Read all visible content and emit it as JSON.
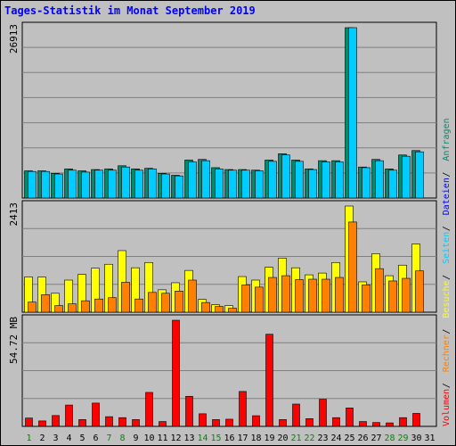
{
  "chart_data": {
    "type": "bar",
    "title": "Tages-Statistik im Monat September 2019",
    "days": [
      1,
      2,
      3,
      4,
      5,
      6,
      7,
      8,
      9,
      10,
      11,
      12,
      13,
      14,
      15,
      16,
      17,
      18,
      19,
      20,
      21,
      22,
      23,
      24,
      25,
      26,
      27,
      28,
      29,
      30,
      31
    ],
    "weekend_days": [
      1,
      7,
      8,
      14,
      15,
      21,
      22,
      28,
      29
    ],
    "panels": [
      {
        "name": "top",
        "scale_label": "26913",
        "ymax": 26913,
        "series": [
          {
            "name": "Anfragen",
            "color": "#008a6e",
            "values": [
              4300,
              4300,
              3900,
              4600,
              4300,
              4500,
              4600,
              5100,
              4600,
              4700,
              3900,
              3600,
              6000,
              6100,
              4800,
              4500,
              4500,
              4400,
              6000,
              7000,
              6000,
              4600,
              5900,
              5900,
              26913,
              4900,
              6100,
              4600,
              6800,
              7500,
              0
            ]
          },
          {
            "name": "Dateien",
            "color": "#00ccff",
            "values": [
              4200,
              4200,
              3800,
              4400,
              4100,
              4400,
              4400,
              4900,
              4400,
              4600,
              3800,
              3500,
              5700,
              5900,
              4600,
              4400,
              4400,
              4300,
              5800,
              6800,
              5800,
              4500,
              5700,
              5700,
              26913,
              4800,
              5900,
              4400,
              6600,
              7300,
              0
            ]
          }
        ]
      },
      {
        "name": "middle",
        "scale_label": "2413",
        "ymax": 2413,
        "series": [
          {
            "name": "Seiten",
            "color": "#ffff00",
            "values": [
              800,
              800,
              430,
              730,
              860,
              1000,
              1090,
              1400,
              1010,
              1130,
              510,
              670,
              950,
              290,
              170,
              150,
              810,
              730,
              1020,
              1230,
              1010,
              850,
              890,
              1130,
              2413,
              690,
              1330,
              830,
              1070,
              1550,
              0
            ]
          },
          {
            "name": "Besuche",
            "color": "#ff8000",
            "values": [
              230,
              400,
              150,
              190,
              260,
              300,
              330,
              680,
              300,
              450,
              430,
              480,
              730,
              220,
              130,
              90,
              620,
              570,
              790,
              830,
              740,
              750,
              750,
              790,
              2050,
              620,
              990,
              710,
              770,
              940,
              0
            ]
          }
        ]
      },
      {
        "name": "bottom",
        "scale_label": "54.72 MB",
        "ymax": 54.72,
        "series": [
          {
            "name": "Volumen",
            "color": "#ff0000",
            "values": [
              4.3,
              2.8,
              5.6,
              11.0,
              3.5,
              12.0,
              5.0,
              4.5,
              3.5,
              17.5,
              2.5,
              54.72,
              15.5,
              6.5,
              3.5,
              3.7,
              18.0,
              5.5,
              47.5,
              3.5,
              11.5,
              4.0,
              14.0,
              4.5,
              9.5,
              2.5,
              2.0,
              1.8,
              4.5,
              6.7,
              0
            ]
          }
        ]
      }
    ],
    "legend_right": [
      "Volumen",
      "Rechner",
      "Besuche",
      "Seiten",
      "Dateien",
      "Anfragen"
    ],
    "legend_colors": [
      "#ff0000",
      "#ff8000",
      "#ffff00",
      "#00ccff",
      "#0000ff",
      "#008a6e"
    ]
  }
}
